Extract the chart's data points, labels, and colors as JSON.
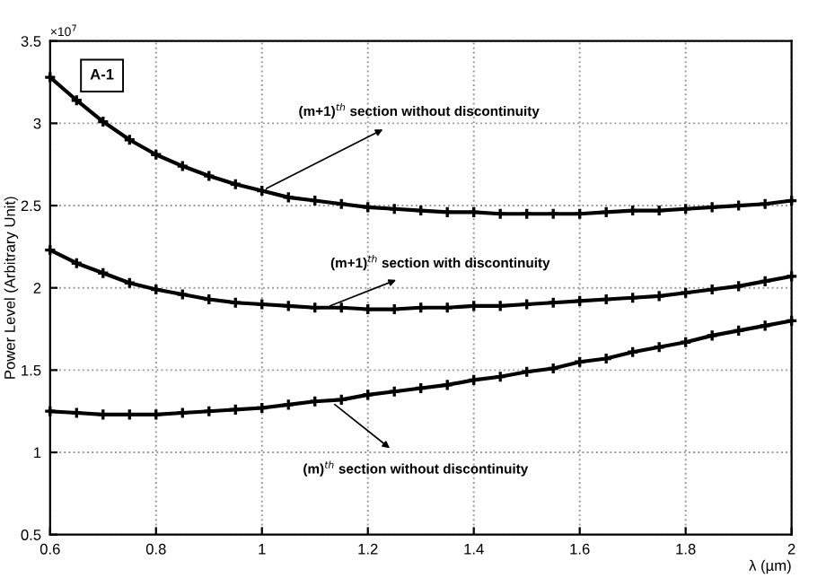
{
  "chart_data": {
    "type": "line",
    "x": [
      0.6,
      0.65,
      0.7,
      0.75,
      0.8,
      0.85,
      0.9,
      0.95,
      1.0,
      1.05,
      1.1,
      1.15,
      1.2,
      1.25,
      1.3,
      1.35,
      1.4,
      1.45,
      1.5,
      1.55,
      1.6,
      1.65,
      1.7,
      1.75,
      1.8,
      1.85,
      1.9,
      1.95,
      2.0
    ],
    "series": [
      {
        "color": "#000000",
        "values": [
          3.28,
          3.14,
          3.01,
          2.9,
          2.81,
          2.74,
          2.68,
          2.63,
          2.59,
          2.55,
          2.53,
          2.51,
          2.49,
          2.48,
          2.47,
          2.46,
          2.46,
          2.45,
          2.45,
          2.45,
          2.45,
          2.46,
          2.47,
          2.47,
          2.48,
          2.49,
          2.5,
          2.51,
          2.53
        ]
      },
      {
        "color": "#000000",
        "values": [
          2.23,
          2.15,
          2.09,
          2.03,
          1.99,
          1.96,
          1.93,
          1.91,
          1.9,
          1.89,
          1.88,
          1.88,
          1.87,
          1.87,
          1.88,
          1.88,
          1.89,
          1.89,
          1.9,
          1.91,
          1.92,
          1.93,
          1.94,
          1.95,
          1.97,
          1.99,
          2.01,
          2.04,
          2.07
        ]
      },
      {
        "color": "#000000",
        "values": [
          1.25,
          1.24,
          1.23,
          1.23,
          1.23,
          1.24,
          1.25,
          1.26,
          1.27,
          1.29,
          1.31,
          1.32,
          1.35,
          1.37,
          1.39,
          1.41,
          1.44,
          1.46,
          1.49,
          1.51,
          1.55,
          1.57,
          1.61,
          1.64,
          1.67,
          1.71,
          1.74,
          1.77,
          1.8
        ]
      }
    ],
    "xlabel": "λ (µm)",
    "ylabel": "Power Level (Arbitrary Unit)",
    "xlim": [
      0.6,
      2
    ],
    "ylim": [
      0.5,
      3.5
    ],
    "xticks": [
      0.6,
      0.8,
      1,
      1.2,
      1.4,
      1.6,
      1.8,
      2
    ],
    "yticks": [
      0.5,
      1,
      1.5,
      2,
      2.5,
      3,
      3.5
    ],
    "annotations": [
      "A-1",
      "×10$^{7}$",
      {
        "text": "(m+1)$^{th}$ section without discontinuity",
        "x": 1.0,
        "y": 2.59
      },
      {
        "text": "(m+1)$^{th}$ section with discontinuity",
        "x": 1.12,
        "y": 1.88
      },
      {
        "text": "(m)$^{th}$ section without discontinuity",
        "x": 1.13,
        "y": 1.31
      }
    ],
    "grid": true,
    "marker": "cross",
    "line_style": "solid"
  }
}
